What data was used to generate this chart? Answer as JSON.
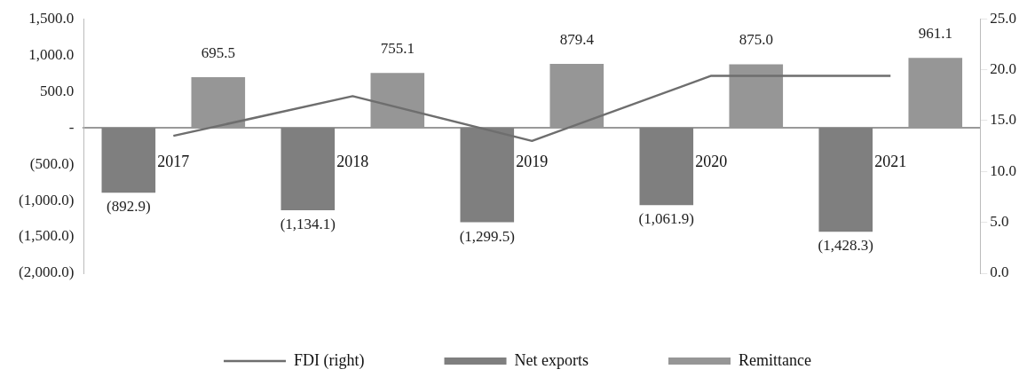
{
  "chart_data": {
    "type": "bar",
    "categories": [
      "2017",
      "2018",
      "2019",
      "2020",
      "2021"
    ],
    "series": [
      {
        "name": "Net exports",
        "color": "#7f7f7f",
        "values": [
          -892.9,
          -1134.1,
          -1299.5,
          -1061.9,
          -1428.3
        ],
        "value_labels": [
          "(892.9)",
          "(1,134.1)",
          "(1,299.5)",
          "(1,061.9)",
          "(1,428.3)"
        ]
      },
      {
        "name": "Remittance",
        "color": "#969696",
        "values": [
          695.5,
          755.1,
          879.4,
          875.0,
          961.1
        ],
        "value_labels": [
          "695.5",
          "755.1",
          "879.4",
          "875.0",
          "961.1"
        ]
      },
      {
        "name": "FDI (right)",
        "type": "line",
        "axis": "y2",
        "color": "#6e6e6e",
        "values": [
          13.5,
          17.4,
          13.0,
          19.4,
          19.4
        ]
      }
    ],
    "ylim": [
      -2000,
      1500
    ],
    "yticks": [
      {
        "value": -2000,
        "label": "(2,000.0)"
      },
      {
        "value": -1500,
        "label": "(1,500.0)"
      },
      {
        "value": -1000,
        "label": "(1,000.0)"
      },
      {
        "value": -500,
        "label": "(500.0)"
      },
      {
        "value": 0,
        "label": "-"
      },
      {
        "value": 500,
        "label": "500.0"
      },
      {
        "value": 1000,
        "label": "1,000.0"
      },
      {
        "value": 1500,
        "label": "1,500.0"
      }
    ],
    "y2lim": [
      0,
      25
    ],
    "y2ticks": [
      {
        "value": 0,
        "label": "0.0"
      },
      {
        "value": 5,
        "label": "5.0"
      },
      {
        "value": 10,
        "label": "10.0"
      },
      {
        "value": 15,
        "label": "15.0"
      },
      {
        "value": 20,
        "label": "20.0"
      },
      {
        "value": 25,
        "label": "25.0"
      }
    ],
    "legend": "bottom",
    "marker": "none",
    "line_style": "solid"
  }
}
